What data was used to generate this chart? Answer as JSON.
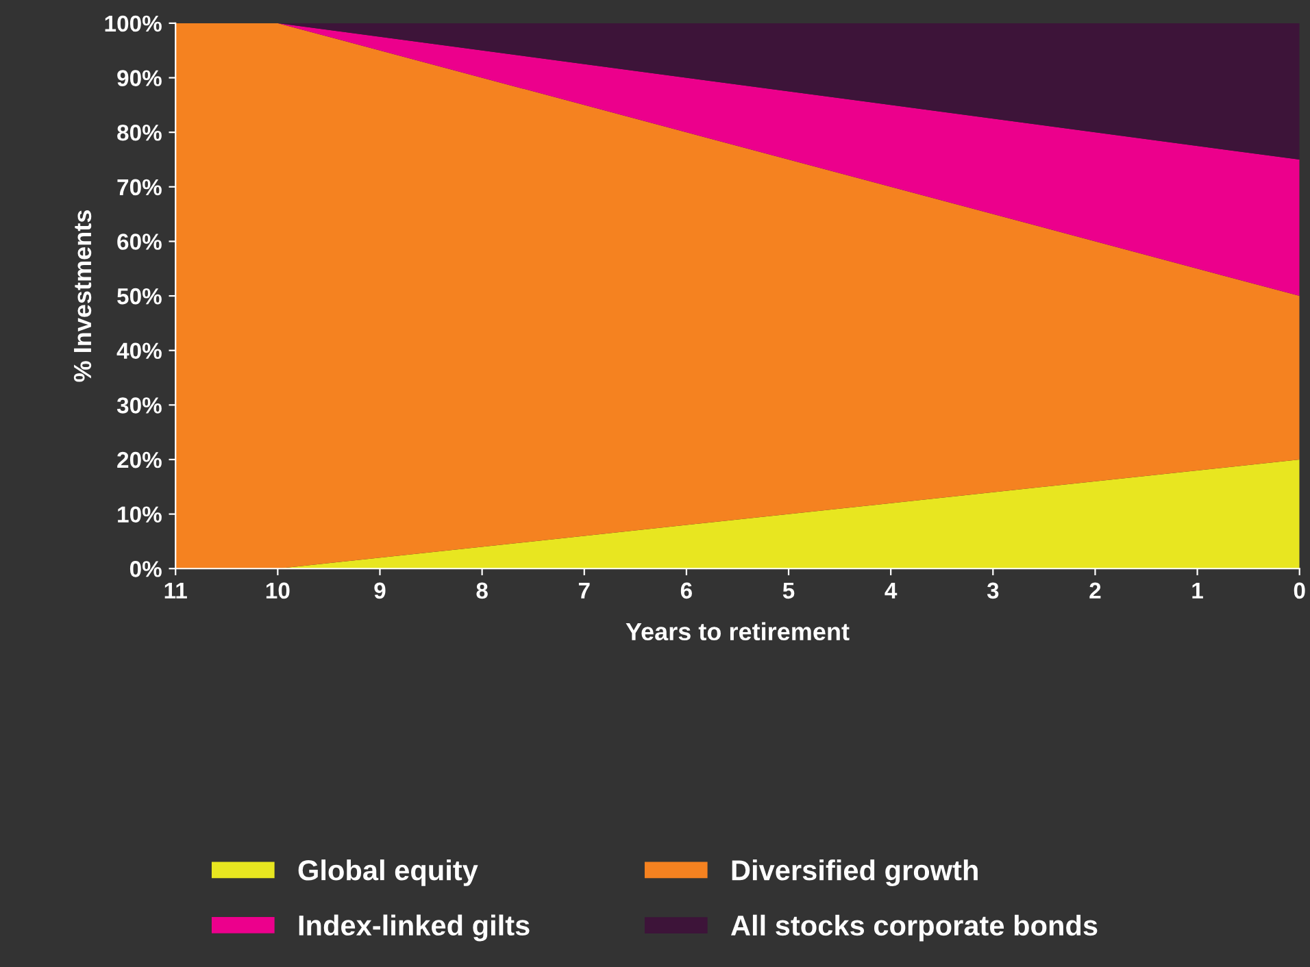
{
  "chart_data": {
    "type": "area",
    "stacked": true,
    "xlabel": "Years to retirement",
    "ylabel": "% Investments",
    "x": [
      11,
      10,
      0
    ],
    "series": [
      {
        "name": "Global equity",
        "color": "#e8e620",
        "values": [
          0,
          0,
          20
        ]
      },
      {
        "name": "Diversified growth",
        "color": "#f58220",
        "values": [
          100,
          100,
          30
        ]
      },
      {
        "name": "Index-linked gilts",
        "color": "#ec008c",
        "values": [
          0,
          0,
          25
        ]
      },
      {
        "name": "All stocks corporate bonds",
        "color": "#3d1439",
        "values": [
          0,
          0,
          25
        ]
      }
    ],
    "xlim": [
      11,
      0
    ],
    "ylim": [
      0,
      100
    ],
    "xticks": [
      11,
      10,
      9,
      8,
      7,
      6,
      5,
      4,
      3,
      2,
      1,
      0
    ],
    "yticks": [
      {
        "value": 0,
        "label": "0%"
      },
      {
        "value": 10,
        "label": "10%"
      },
      {
        "value": 20,
        "label": "20%"
      },
      {
        "value": 30,
        "label": "30%"
      },
      {
        "value": 40,
        "label": "40%"
      },
      {
        "value": 50,
        "label": "50%"
      },
      {
        "value": 60,
        "label": "60%"
      },
      {
        "value": 70,
        "label": "70%"
      },
      {
        "value": 80,
        "label": "80%"
      },
      {
        "value": 90,
        "label": "90%"
      },
      {
        "value": 100,
        "label": "100%"
      }
    ],
    "grid": false,
    "legend": "bottom"
  }
}
